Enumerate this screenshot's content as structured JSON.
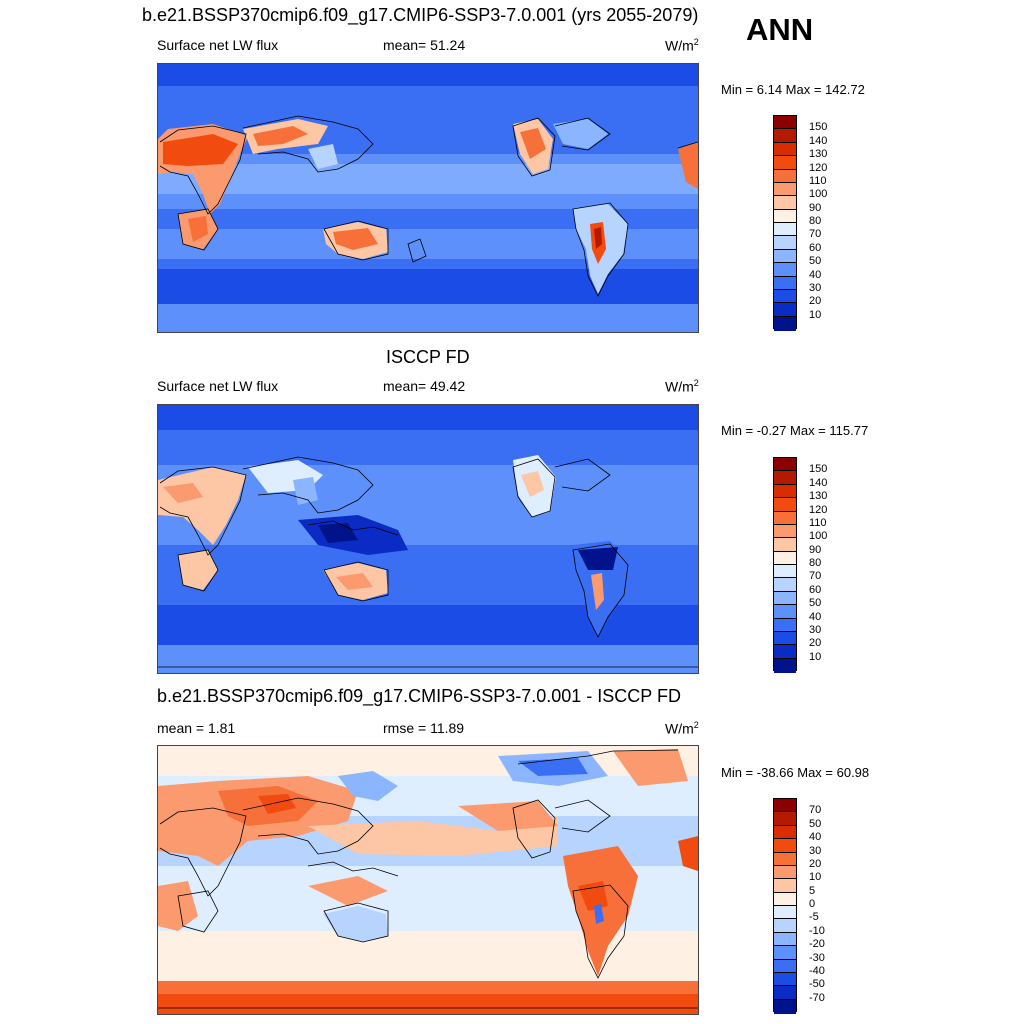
{
  "header": {
    "case_title": "b.e21.BSSP370cmip6.f09_g17.CMIP6-SSP3-7.0.001 (yrs 2055-2079)",
    "season": "ANN"
  },
  "panels": [
    {
      "id": "model",
      "title": "",
      "left_label": "Surface net LW flux",
      "center_label": "mean=  51.24",
      "units_base": "W/m",
      "units_sup": "2",
      "minmax": "Min =   6.14 Max = 142.72",
      "colorbar": {
        "levels": [
          "150",
          "140",
          "130",
          "120",
          "110",
          "100",
          "90",
          "80",
          "70",
          "60",
          "50",
          "40",
          "30",
          "20",
          "10"
        ],
        "colors": [
          "#8b0000",
          "#b31a00",
          "#d92c00",
          "#f24b0f",
          "#f7703a",
          "#fa9a6e",
          "#fdc6a4",
          "#fff0e4",
          "#dfeeff",
          "#b7d4ff",
          "#8bb6ff",
          "#5e90fb",
          "#3a6ef3",
          "#1c4ce6",
          "#0a2cc4",
          "#00138a"
        ]
      }
    },
    {
      "id": "obs",
      "title": "ISCCP FD",
      "left_label": "Surface net LW flux",
      "center_label": "mean=  49.42",
      "units_base": "W/m",
      "units_sup": "2",
      "minmax": "Min =  -0.27 Max = 115.77",
      "colorbar": {
        "levels": [
          "150",
          "140",
          "130",
          "120",
          "110",
          "100",
          "90",
          "80",
          "70",
          "60",
          "50",
          "40",
          "30",
          "20",
          "10"
        ],
        "colors": [
          "#8b0000",
          "#b31a00",
          "#d92c00",
          "#f24b0f",
          "#f7703a",
          "#fa9a6e",
          "#fdc6a4",
          "#fff0e4",
          "#dfeeff",
          "#b7d4ff",
          "#8bb6ff",
          "#5e90fb",
          "#3a6ef3",
          "#1c4ce6",
          "#0a2cc4",
          "#00138a"
        ]
      }
    },
    {
      "id": "diff",
      "title": "b.e21.BSSP370cmip6.f09_g17.CMIP6-SSP3-7.0.001 - ISCCP FD",
      "left_label": "mean =   1.81",
      "center_label": "rmse =  11.89",
      "units_base": "W/m",
      "units_sup": "2",
      "minmax": "Min = -38.66 Max =  60.98",
      "colorbar": {
        "levels": [
          "70",
          "50",
          "40",
          "30",
          "20",
          "10",
          "5",
          "0",
          "-5",
          "-10",
          "-20",
          "-30",
          "-40",
          "-50",
          "-70"
        ],
        "colors": [
          "#8b0000",
          "#b31a00",
          "#d92c00",
          "#f24b0f",
          "#f7703a",
          "#fa9a6e",
          "#fdc6a4",
          "#fff0e4",
          "#dfeeff",
          "#b7d4ff",
          "#8bb6ff",
          "#5e90fb",
          "#3a6ef3",
          "#1c4ce6",
          "#0a2cc4",
          "#00138a"
        ]
      }
    }
  ]
}
